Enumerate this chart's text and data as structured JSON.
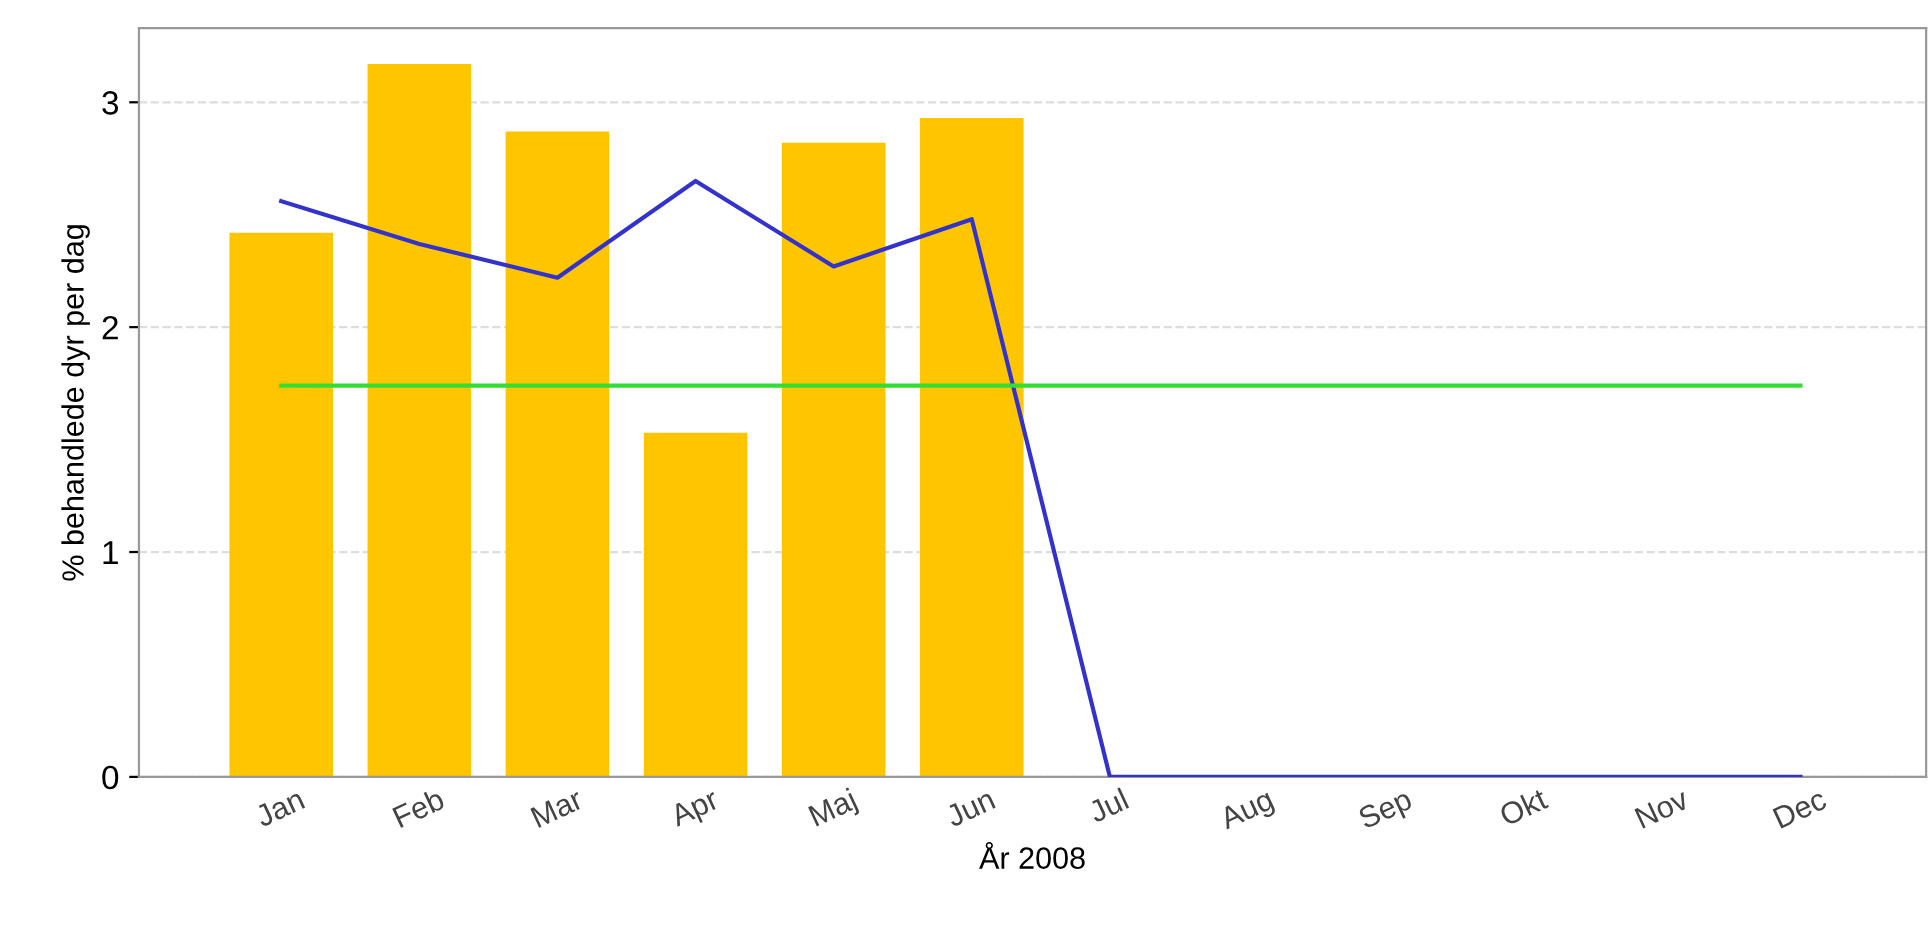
{
  "chart_data": {
    "type": "bar",
    "xlabel": "År 2008",
    "ylabel": "% behandlede dyr per dag",
    "categories": [
      "Jan",
      "Feb",
      "Mar",
      "Apr",
      "Maj",
      "Jun",
      "Jul",
      "Aug",
      "Sep",
      "Okt",
      "Nov",
      "Dec"
    ],
    "series": [
      {
        "color": "#ffc600",
        "values": [
          2.42,
          3.17,
          2.87,
          1.53,
          2.82,
          2.93,
          null,
          null,
          null,
          null,
          null,
          null
        ]
      },
      {
        "type": "line",
        "color": "#3333cc",
        "values": [
          2.56,
          2.37,
          2.22,
          2.65,
          2.27,
          2.48,
          0,
          0,
          0,
          0,
          0,
          0
        ]
      },
      {
        "type": "line",
        "color": "#33dd33",
        "values": [
          1.74,
          1.74,
          1.74,
          1.74,
          1.74,
          1.74,
          1.74,
          1.74,
          1.74,
          1.74,
          1.74,
          1.74
        ]
      }
    ],
    "ylim": [
      0,
      3.33
    ],
    "yticks": [
      0,
      1,
      2,
      3
    ],
    "grid": "y"
  }
}
